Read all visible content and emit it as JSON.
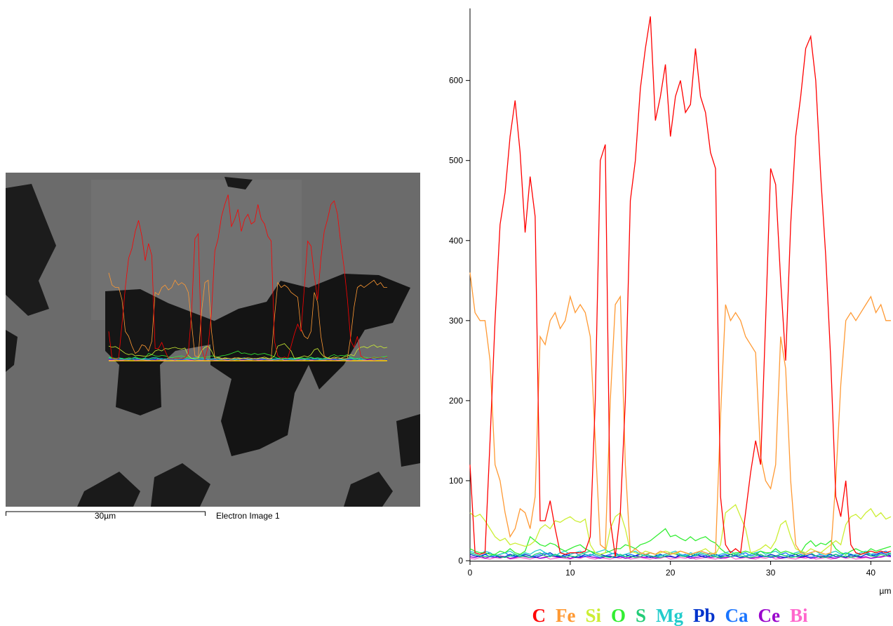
{
  "image": {
    "scale_label": "30µm",
    "caption": "Electron Image 1"
  },
  "chart_data": {
    "type": "line",
    "x_label": "µm",
    "x": [
      0,
      0.5,
      1,
      1.5,
      2,
      2.5,
      3,
      3.5,
      4,
      4.5,
      5,
      5.5,
      6,
      6.5,
      7,
      7.5,
      8,
      8.5,
      9,
      9.5,
      10,
      10.5,
      11,
      11.5,
      12,
      12.5,
      13,
      13.5,
      14,
      14.5,
      15,
      15.5,
      16,
      16.5,
      17,
      17.5,
      18,
      18.5,
      19,
      19.5,
      20,
      20.5,
      21,
      21.5,
      22,
      22.5,
      23,
      23.5,
      24,
      24.5,
      25,
      25.5,
      26,
      26.5,
      27,
      27.5,
      28,
      28.5,
      29,
      29.5,
      30,
      30.5,
      31,
      31.5,
      32,
      32.5,
      33,
      33.5,
      34,
      34.5,
      35,
      35.5,
      36,
      36.5,
      37,
      37.5,
      38,
      38.5,
      39,
      39.5,
      40,
      40.5,
      41,
      41.5,
      42
    ],
    "xlim": [
      0,
      42
    ],
    "xticks": [
      0,
      10,
      20,
      30,
      40
    ],
    "ylim": [
      0,
      690
    ],
    "yticks": [
      0,
      100,
      200,
      300,
      400,
      500,
      600
    ],
    "series": [
      {
        "name": "C",
        "color": "#ff0000",
        "values": [
          120,
          10,
          8,
          10,
          150,
          300,
          420,
          460,
          530,
          575,
          510,
          410,
          480,
          430,
          50,
          50,
          75,
          40,
          10,
          8,
          10,
          10,
          10,
          12,
          30,
          200,
          500,
          520,
          50,
          5,
          60,
          200,
          450,
          500,
          590,
          640,
          680,
          550,
          580,
          620,
          530,
          580,
          600,
          560,
          570,
          640,
          580,
          560,
          510,
          490,
          80,
          20,
          10,
          15,
          10,
          60,
          110,
          150,
          120,
          300,
          490,
          470,
          350,
          250,
          420,
          530,
          580,
          640,
          655,
          600,
          480,
          380,
          250,
          80,
          55,
          100,
          20,
          10,
          8,
          10,
          12,
          10,
          12,
          10,
          12
        ]
      },
      {
        "name": "Fe",
        "color": "#ff9933",
        "values": [
          360,
          310,
          300,
          300,
          250,
          120,
          100,
          60,
          30,
          40,
          65,
          60,
          40,
          80,
          280,
          270,
          300,
          310,
          290,
          300,
          330,
          310,
          320,
          310,
          280,
          150,
          20,
          15,
          200,
          320,
          330,
          120,
          10,
          15,
          10,
          8,
          10,
          8,
          12,
          10,
          8,
          10,
          12,
          10,
          8,
          10,
          12,
          10,
          8,
          10,
          180,
          320,
          300,
          310,
          300,
          280,
          270,
          260,
          130,
          100,
          90,
          120,
          280,
          240,
          100,
          20,
          10,
          8,
          10,
          12,
          10,
          8,
          10,
          100,
          220,
          300,
          310,
          300,
          310,
          320,
          330,
          310,
          320,
          300,
          300
        ]
      },
      {
        "name": "Si",
        "color": "#ccee33",
        "values": [
          60,
          55,
          58,
          50,
          40,
          30,
          25,
          28,
          20,
          22,
          20,
          18,
          20,
          25,
          40,
          45,
          40,
          50,
          48,
          52,
          55,
          50,
          48,
          52,
          20,
          10,
          8,
          10,
          40,
          55,
          60,
          40,
          12,
          10,
          8,
          12,
          10,
          8,
          10,
          12,
          10,
          8,
          12,
          10,
          8,
          10,
          12,
          15,
          10,
          8,
          20,
          60,
          65,
          70,
          55,
          40,
          10,
          12,
          15,
          20,
          15,
          25,
          45,
          50,
          30,
          15,
          12,
          10,
          15,
          12,
          10,
          15,
          20,
          25,
          20,
          45,
          55,
          58,
          52,
          60,
          65,
          55,
          60,
          52,
          55
        ]
      },
      {
        "name": "O",
        "color": "#33ee33",
        "values": [
          15,
          12,
          10,
          10,
          8,
          8,
          12,
          10,
          15,
          10,
          8,
          12,
          30,
          25,
          20,
          18,
          22,
          20,
          15,
          12,
          15,
          18,
          20,
          15,
          12,
          10,
          8,
          10,
          12,
          15,
          15,
          20,
          18,
          15,
          20,
          22,
          25,
          30,
          35,
          40,
          30,
          32,
          28,
          25,
          30,
          25,
          28,
          30,
          25,
          22,
          15,
          10,
          8,
          10,
          10,
          12,
          10,
          8,
          12,
          10,
          10,
          15,
          10,
          12,
          10,
          8,
          10,
          20,
          25,
          18,
          22,
          20,
          25,
          15,
          10,
          8,
          12,
          15,
          12,
          10,
          15,
          12,
          14,
          16,
          18
        ]
      },
      {
        "name": "S",
        "color": "#22cc77",
        "values": [
          10,
          8,
          6,
          5,
          6,
          8,
          5,
          4,
          6,
          8,
          5,
          6,
          4,
          8,
          10,
          6,
          5,
          8,
          6,
          4,
          6,
          5,
          8,
          10,
          12,
          8,
          6,
          5,
          4,
          6,
          8,
          5,
          6,
          4,
          5,
          8,
          6,
          5,
          4,
          6,
          8,
          10,
          6,
          5,
          8,
          6,
          10,
          8,
          6,
          5,
          4,
          6,
          5,
          8,
          6,
          5,
          4,
          6,
          8,
          5,
          6,
          5,
          8,
          6,
          4,
          5,
          6,
          8,
          10,
          6,
          5,
          4,
          6,
          8,
          5,
          6,
          4,
          5,
          8,
          10,
          6,
          5,
          8,
          6,
          10
        ]
      },
      {
        "name": "Mg",
        "color": "#22cccc",
        "values": [
          12,
          10,
          8,
          12,
          10,
          6,
          8,
          10,
          12,
          8,
          6,
          10,
          8,
          12,
          14,
          10,
          8,
          6,
          10,
          12,
          8,
          10,
          12,
          8,
          6,
          10,
          12,
          14,
          10,
          8,
          6,
          8,
          10,
          12,
          8,
          6,
          10,
          8,
          6,
          8,
          10,
          12,
          8,
          6,
          10,
          8,
          12,
          10,
          8,
          6,
          8,
          10,
          12,
          8,
          10,
          6,
          8,
          10,
          12,
          8,
          10,
          12,
          8,
          6,
          8,
          10,
          12,
          8,
          10,
          12,
          8,
          6,
          10,
          12,
          8,
          10,
          6,
          8,
          10,
          12,
          8,
          10,
          12,
          10,
          8
        ]
      },
      {
        "name": "Pb",
        "color": "#0033cc",
        "values": [
          8,
          6,
          5,
          8,
          10,
          6,
          4,
          5,
          8,
          6,
          5,
          8,
          6,
          4,
          6,
          8,
          10,
          6,
          5,
          8,
          6,
          4,
          5,
          8,
          6,
          10,
          8,
          6,
          5,
          4,
          6,
          8,
          5,
          6,
          8,
          6,
          4,
          6,
          8,
          5,
          6,
          4,
          8,
          6,
          5,
          8,
          6,
          4,
          6,
          8,
          5,
          6,
          8,
          6,
          4,
          5,
          8,
          10,
          6,
          5,
          8,
          6,
          5,
          4,
          6,
          8,
          5,
          6,
          8,
          6,
          4,
          6,
          8,
          5,
          6,
          4,
          8,
          6,
          5,
          8,
          6,
          8,
          10,
          8,
          6
        ]
      },
      {
        "name": "Ca",
        "color": "#1a75ff",
        "values": [
          10,
          8,
          6,
          8,
          5,
          6,
          8,
          10,
          6,
          5,
          8,
          6,
          4,
          6,
          8,
          10,
          6,
          8,
          5,
          6,
          8,
          10,
          6,
          5,
          8,
          6,
          4,
          6,
          8,
          10,
          6,
          5,
          8,
          6,
          10,
          8,
          6,
          5,
          6,
          8,
          10,
          8,
          6,
          8,
          5,
          6,
          8,
          6,
          10,
          8,
          6,
          8,
          5,
          6,
          8,
          10,
          6,
          8,
          5,
          6,
          4,
          6,
          8,
          10,
          6,
          5,
          8,
          6,
          4,
          6,
          8,
          6,
          5,
          8,
          6,
          10,
          8,
          6,
          8,
          10,
          8,
          6,
          10,
          12,
          8
        ]
      },
      {
        "name": "Ce",
        "color": "#9900cc",
        "values": [
          5,
          4,
          6,
          3,
          5,
          4,
          6,
          5,
          3,
          4,
          6,
          5,
          4,
          5,
          3,
          4,
          6,
          5,
          4,
          5,
          3,
          5,
          4,
          6,
          5,
          4,
          3,
          5,
          6,
          4,
          5,
          3,
          4,
          6,
          5,
          4,
          5,
          3,
          4,
          6,
          5,
          4,
          6,
          5,
          3,
          4,
          5,
          6,
          4,
          5,
          3,
          4,
          5,
          6,
          4,
          5,
          3,
          4,
          5,
          6,
          4,
          5,
          3,
          4,
          6,
          5,
          4,
          5,
          3,
          4,
          6,
          5,
          4,
          3,
          5,
          4,
          6,
          5,
          4,
          5,
          3,
          4,
          5,
          6,
          5
        ]
      },
      {
        "name": "Bi",
        "color": "#ff66cc",
        "values": [
          3,
          2,
          4,
          3,
          2,
          4,
          3,
          5,
          2,
          3,
          4,
          3,
          2,
          4,
          3,
          5,
          2,
          3,
          4,
          3,
          2,
          4,
          3,
          5,
          3,
          2,
          4,
          3,
          2,
          4,
          3,
          5,
          2,
          3,
          4,
          3,
          2,
          4,
          3,
          5,
          2,
          3,
          4,
          3,
          5,
          2,
          3,
          4,
          3,
          2,
          4,
          3,
          5,
          2,
          3,
          4,
          3,
          2,
          4,
          3,
          5,
          2,
          3,
          4,
          3,
          2,
          4,
          3,
          5,
          2,
          3,
          4,
          2,
          3,
          5,
          3,
          4,
          2,
          3,
          4,
          3,
          5,
          4,
          6,
          8
        ]
      }
    ]
  }
}
